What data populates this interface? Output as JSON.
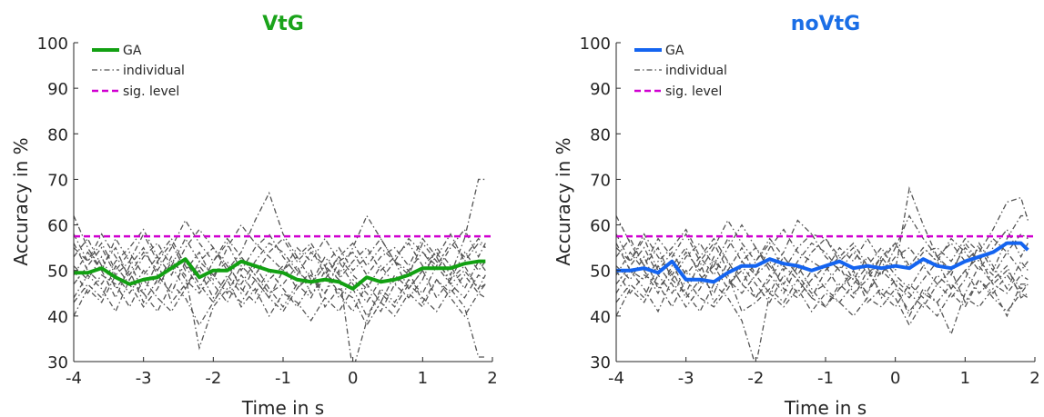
{
  "chart_data": [
    {
      "type": "line",
      "title": "VtG",
      "title_color": "#1aa31a",
      "xlabel": "Time in s",
      "ylabel": "Accuracy in %",
      "xlim": [
        -4,
        2
      ],
      "ylim": [
        30,
        100
      ],
      "xticks": [
        -4,
        -3,
        -2,
        -1,
        0,
        1,
        2
      ],
      "yticks": [
        30,
        40,
        50,
        60,
        70,
        80,
        90,
        100
      ],
      "grid": false,
      "legend_position": "top-left",
      "legend": [
        "GA",
        "individual",
        "sig. level"
      ],
      "sig_level": 57.5,
      "ga_color": "#12a012",
      "individual_color": "#555555",
      "sig_color": "#d000d0",
      "x": [
        -4,
        -3.8,
        -3.6,
        -3.4,
        -3.2,
        -3,
        -2.8,
        -2.6,
        -2.4,
        -2.2,
        -2,
        -1.8,
        -1.6,
        -1.4,
        -1.2,
        -1,
        -0.8,
        -0.6,
        -0.4,
        -0.2,
        0,
        0.2,
        0.4,
        0.6,
        0.8,
        1,
        1.2,
        1.4,
        1.6,
        1.8,
        1.9
      ],
      "ga": [
        49.5,
        49.5,
        50.5,
        48.5,
        47,
        48,
        48.5,
        50.5,
        52.5,
        48.5,
        50,
        50,
        52,
        51,
        50,
        49.5,
        48,
        47.5,
        48,
        47.5,
        46,
        48.5,
        47.5,
        48,
        49,
        50.5,
        50.5,
        50.5,
        51.5,
        52,
        52
      ],
      "individuals": [
        [
          62,
          55,
          50,
          57,
          52,
          58,
          52,
          56,
          50,
          54,
          48,
          55,
          60,
          56,
          53,
          50,
          55,
          52,
          57,
          52,
          54,
          49,
          53,
          55,
          51,
          57,
          53,
          58,
          52,
          56,
          55
        ],
        [
          44,
          49,
          46,
          41,
          48,
          45,
          52,
          43,
          47,
          50,
          44,
          49,
          45,
          51,
          46,
          42,
          47,
          44,
          50,
          45,
          41,
          47,
          43,
          49,
          46,
          50,
          44,
          48,
          51,
          46,
          49
        ],
        [
          58,
          52,
          56,
          50,
          54,
          49,
          53,
          57,
          51,
          46,
          52,
          56,
          50,
          55,
          58,
          53,
          49,
          54,
          51,
          48,
          52,
          55,
          50,
          53,
          56,
          51,
          54,
          49,
          57,
          70,
          70
        ],
        [
          40,
          46,
          43,
          49,
          52,
          45,
          41,
          47,
          44,
          38,
          43,
          48,
          42,
          46,
          40,
          45,
          43,
          39,
          44,
          41,
          46,
          40,
          45,
          42,
          47,
          44,
          41,
          46,
          42,
          31,
          31
        ],
        [
          53,
          57,
          51,
          55,
          48,
          53,
          56,
          51,
          57,
          52,
          55,
          50,
          54,
          61,
          67,
          58,
          53,
          56,
          51,
          55,
          50,
          53,
          57,
          52,
          50,
          54,
          51,
          56,
          53,
          57,
          55
        ],
        [
          47,
          51,
          55,
          49,
          45,
          50,
          47,
          53,
          48,
          45,
          49,
          52,
          46,
          43,
          48,
          51,
          46,
          49,
          45,
          52,
          47,
          43,
          48,
          52,
          46,
          50,
          53,
          47,
          44,
          49,
          48
        ],
        [
          51,
          48,
          53,
          46,
          50,
          43,
          48,
          51,
          46,
          52,
          49,
          45,
          51,
          48,
          44,
          50,
          53,
          48,
          45,
          50,
          28,
          39,
          46,
          43,
          48,
          45,
          51,
          47,
          50,
          46,
          47
        ],
        [
          56,
          50,
          47,
          52,
          55,
          59,
          53,
          49,
          55,
          59,
          55,
          51,
          47,
          52,
          56,
          54,
          50,
          47,
          53,
          49,
          55,
          62,
          57,
          52,
          49,
          56,
          52,
          48,
          54,
          50,
          52
        ],
        [
          49,
          54,
          50,
          44,
          51,
          55,
          49,
          45,
          52,
          47,
          43,
          48,
          53,
          49,
          45,
          47,
          51,
          45,
          48,
          53,
          49,
          46,
          51,
          47,
          44,
          48,
          55,
          51,
          46,
          52,
          50
        ],
        [
          43,
          47,
          44,
          51,
          47,
          42,
          46,
          52,
          49,
          33,
          42,
          46,
          43,
          48,
          44,
          41,
          46,
          50,
          42,
          46,
          44,
          38,
          43,
          40,
          45,
          42,
          48,
          44,
          40,
          45,
          44
        ],
        [
          55,
          52,
          58,
          53,
          49,
          54,
          50,
          55,
          61,
          56,
          52,
          57,
          53,
          49,
          54,
          57,
          52,
          55,
          49,
          53,
          56,
          51,
          55,
          52,
          57,
          54,
          50,
          55,
          59,
          53,
          56
        ],
        [
          50,
          45,
          49,
          47,
          42,
          48,
          44,
          41,
          46,
          51,
          47,
          43,
          49,
          45,
          50,
          46,
          42,
          47,
          51,
          44,
          48,
          45,
          41,
          47,
          50,
          43,
          48,
          45,
          49,
          45,
          47
        ]
      ]
    },
    {
      "type": "line",
      "title": "noVtG",
      "title_color": "#1a6ee6",
      "xlabel": "Time in s",
      "ylabel": "Accuracy in %",
      "xlim": [
        -4,
        2
      ],
      "ylim": [
        30,
        100
      ],
      "xticks": [
        -4,
        -3,
        -2,
        -1,
        0,
        1,
        2
      ],
      "yticks": [
        30,
        40,
        50,
        60,
        70,
        80,
        90,
        100
      ],
      "grid": false,
      "legend_position": "top-left",
      "legend": [
        "GA",
        "individual",
        "sig. level"
      ],
      "sig_level": 57.5,
      "ga_color": "#1464f0",
      "individual_color": "#555555",
      "sig_color": "#d000d0",
      "x": [
        -4,
        -3.8,
        -3.6,
        -3.4,
        -3.2,
        -3,
        -2.8,
        -2.6,
        -2.4,
        -2.2,
        -2,
        -1.8,
        -1.6,
        -1.4,
        -1.2,
        -1,
        -0.8,
        -0.6,
        -0.4,
        -0.2,
        0,
        0.2,
        0.4,
        0.6,
        0.8,
        1,
        1.2,
        1.4,
        1.6,
        1.8,
        1.9
      ],
      "ga": [
        50,
        50,
        50.5,
        49.5,
        52,
        48,
        48,
        47.5,
        49.5,
        51,
        51,
        52.5,
        51.5,
        51,
        50,
        51,
        52,
        50.5,
        51,
        50.5,
        51,
        50.5,
        52.5,
        51,
        50.5,
        52,
        53,
        54,
        56,
        56,
        54.5
      ],
      "individuals": [
        [
          62,
          56,
          51,
          57,
          53,
          58,
          52,
          56,
          50,
          55,
          49,
          55,
          59,
          54,
          52,
          50,
          55,
          52,
          57,
          52,
          56,
          50,
          54,
          55,
          52,
          57,
          54,
          59,
          65,
          66,
          61
        ],
        [
          45,
          50,
          46,
          41,
          48,
          45,
          52,
          43,
          47,
          50,
          44,
          49,
          45,
          51,
          46,
          42,
          47,
          44,
          50,
          45,
          42,
          47,
          44,
          49,
          46,
          50,
          45,
          48,
          51,
          44,
          45
        ],
        [
          58,
          52,
          57,
          50,
          54,
          49,
          53,
          57,
          52,
          47,
          52,
          56,
          50,
          55,
          58,
          53,
          50,
          54,
          51,
          49,
          53,
          55,
          51,
          53,
          56,
          52,
          55,
          50,
          57,
          62,
          62
        ],
        [
          40,
          46,
          43,
          49,
          52,
          45,
          41,
          47,
          44,
          39,
          29,
          45,
          42,
          46,
          41,
          45,
          43,
          40,
          44,
          42,
          46,
          41,
          45,
          43,
          47,
          44,
          42,
          46,
          40,
          47,
          47
        ],
        [
          53,
          57,
          51,
          55,
          48,
          53,
          56,
          51,
          57,
          52,
          55,
          50,
          54,
          61,
          58,
          57,
          53,
          56,
          51,
          55,
          50,
          68,
          60,
          53,
          50,
          55,
          52,
          57,
          54,
          58,
          57
        ],
        [
          47,
          51,
          55,
          49,
          45,
          50,
          47,
          53,
          48,
          45,
          49,
          52,
          46,
          44,
          48,
          51,
          46,
          49,
          45,
          52,
          47,
          44,
          48,
          52,
          46,
          50,
          53,
          47,
          45,
          49,
          48
        ],
        [
          51,
          48,
          53,
          46,
          50,
          44,
          48,
          51,
          46,
          52,
          49,
          45,
          51,
          48,
          44,
          50,
          53,
          48,
          45,
          50,
          47,
          40,
          46,
          43,
          36,
          45,
          51,
          47,
          50,
          46,
          47
        ],
        [
          56,
          50,
          48,
          52,
          55,
          59,
          53,
          49,
          55,
          60,
          55,
          51,
          47,
          52,
          56,
          54,
          50,
          48,
          53,
          49,
          55,
          62,
          57,
          53,
          49,
          56,
          52,
          49,
          54,
          50,
          52
        ],
        [
          49,
          54,
          50,
          45,
          51,
          55,
          49,
          45,
          52,
          47,
          44,
          48,
          53,
          49,
          45,
          47,
          51,
          45,
          48,
          53,
          49,
          46,
          51,
          47,
          44,
          48,
          56,
          51,
          46,
          52,
          50
        ],
        [
          43,
          47,
          44,
          51,
          47,
          42,
          46,
          52,
          49,
          41,
          43,
          46,
          43,
          48,
          44,
          42,
          46,
          50,
          43,
          46,
          44,
          38,
          43,
          40,
          45,
          42,
          48,
          44,
          41,
          45,
          44
        ],
        [
          55,
          52,
          58,
          53,
          49,
          54,
          50,
          55,
          61,
          56,
          52,
          57,
          53,
          49,
          54,
          57,
          52,
          55,
          49,
          53,
          56,
          51,
          55,
          52,
          57,
          54,
          50,
          55,
          59,
          53,
          56
        ],
        [
          50,
          45,
          49,
          47,
          42,
          48,
          44,
          42,
          46,
          51,
          47,
          43,
          49,
          45,
          50,
          46,
          43,
          47,
          51,
          44,
          48,
          45,
          42,
          47,
          50,
          43,
          48,
          45,
          49,
          45,
          47
        ]
      ]
    }
  ]
}
